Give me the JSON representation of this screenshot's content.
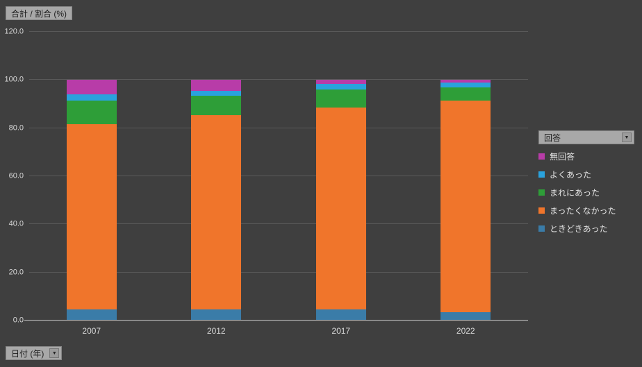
{
  "fields": {
    "value_label": "合計 / 割合 (%)",
    "axis_label": "日付 (年)",
    "legend_label": "回答"
  },
  "icons": {
    "dropdown_arrow": "▼"
  },
  "colors": {
    "background": "#3f3f3f",
    "gridline": "#5a5a5a",
    "axis_line": "#c9c9c9",
    "tick_text": "#d9d9d9",
    "button_bg": "#a8a8a8",
    "button_text": "#1c1c1c"
  },
  "chart_data": {
    "type": "bar",
    "stacked": true,
    "stacked_100_percent": true,
    "title": "",
    "xlabel": "日付 (年)",
    "ylabel": "合計 / 割合 (%)",
    "categories": [
      "2007",
      "2012",
      "2017",
      "2022"
    ],
    "series": [
      {
        "name": "ときどきあった",
        "color": "#3a7ca8",
        "values": [
          4.5,
          4.5,
          4.5,
          3.5
        ]
      },
      {
        "name": "まったくなかった",
        "color": "#f0752b",
        "values": [
          77.2,
          81.0,
          84.0,
          88.0
        ]
      },
      {
        "name": "まれにあった",
        "color": "#2e9e38",
        "values": [
          9.8,
          8.0,
          7.5,
          5.5
        ]
      },
      {
        "name": "よくあった",
        "color": "#2aa2dd",
        "values": [
          2.5,
          2.0,
          2.5,
          2.0
        ]
      },
      {
        "name": "無回答",
        "color": "#b83ca8",
        "values": [
          6.0,
          4.5,
          1.5,
          1.0
        ]
      }
    ],
    "legend_order": [
      "無回答",
      "よくあった",
      "まれにあった",
      "まったくなかった",
      "ときどきあった"
    ],
    "legend_position": "right",
    "grid": true,
    "ylim": [
      0,
      120
    ],
    "yticks": [
      0,
      20,
      40,
      60,
      80,
      100,
      120
    ],
    "ytick_labels": [
      "0.0",
      "20.0",
      "40.0",
      "60.0",
      "80.0",
      "100.0",
      "120.0"
    ]
  }
}
